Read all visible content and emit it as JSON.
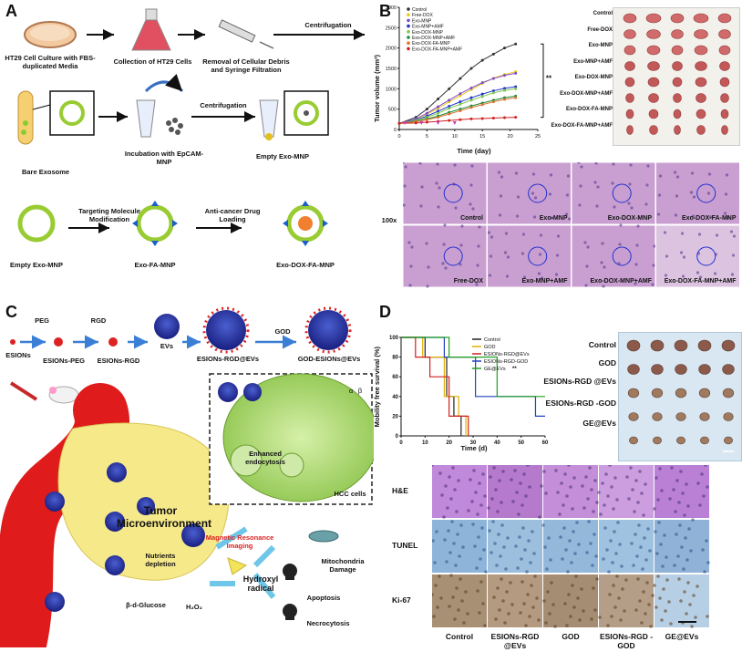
{
  "panels": {
    "a": "A",
    "b": "B",
    "c": "C",
    "d": "D"
  },
  "panelA": {
    "row1": [
      "HT29 Cell Culture with FBS-duplicated Media",
      "Collection of HT29 Cells",
      "Removal of Cellular Debris and Syringe Filtration",
      "Centrifugation"
    ],
    "row2": [
      "Bare Exosome",
      "Incubation with EpCAM-MNP",
      "Centrifugation",
      "Empty Exo-MNP"
    ],
    "row3": [
      "Empty Exo-MNP",
      "Targeting Molecule Modification",
      "Exo-FA-MNP",
      "Anti-cancer Drug Loading",
      "Exo-DOX-FA-MNP"
    ]
  },
  "panelB": {
    "legend": [
      "Control",
      "Free-DOX",
      "Exo-MNP",
      "Exo-MNP+AMF",
      "Exo-DOX-MNP",
      "Exo-DOX-MNP+AMF",
      "Exo-DOX-FA-MNP",
      "Exo-DOX-FA-MNP+AMF"
    ],
    "colors": [
      "#333333",
      "#f0c419",
      "#7b4fc9",
      "#2233cc",
      "#7ec84a",
      "#1a8c3a",
      "#e07030",
      "#d22020"
    ],
    "ylabel": "Tumor volume (mm³)",
    "xlabel": "Time (day)",
    "sig": "**",
    "yticks": [
      "0",
      "500",
      "1000",
      "1500",
      "2000",
      "2500",
      "3000"
    ],
    "xticks": [
      "0",
      "5",
      "10",
      "15",
      "20",
      "25"
    ],
    "photo_labels": [
      "Control",
      "Free-DOX",
      "Exo-MNP",
      "Exo-MNP+AMF",
      "Exo-DOX-MNP",
      "Exo-DOX-MNP+AMF",
      "Exo-DOX-FA-MNP",
      "Exo-DOX-FA-MNP+AMF"
    ],
    "histo_mag": "100x",
    "histo_labels": [
      "Control",
      "Exo-MNP",
      "Exo-DOX-MNP",
      "Exo-DOX-FA-MNP",
      "Free-DOX",
      "Exo-MNP+AMF",
      "Exo-DOX-MNP+AMF",
      "Exo-DOX-FA-MNP+AMF"
    ]
  },
  "panelC": {
    "top": [
      "PEG",
      "RGD",
      "ESIONs",
      "ESIONs-PEG",
      "ESIONs-RGD",
      "EVs",
      "ESIONs-RGD@EVs",
      "GOD",
      "GOD-ESIONs@EVs"
    ],
    "inset": [
      "Enhanced endocytosis",
      "HCC cells",
      "α",
      "β"
    ],
    "tumor": "Tumor Microenvironment",
    "labels": [
      "Nutrients depletion",
      "Magnetic Resonance Imaging",
      "Mitochondria Damage",
      "Hydroxyl radical",
      "Apoptosis",
      "Necrocytosis",
      "β-d-Glucose",
      "H₂O₂"
    ]
  },
  "panelD": {
    "ylabel": "Mobility free survival (%)",
    "xlabel": "Time (d)",
    "legend": [
      "Control",
      "GOD",
      "ESIONs-RGD@EVs",
      "ESIONs-RGD-GOD",
      "GE@EVs"
    ],
    "legend_sig": "**",
    "colors": [
      "#222222",
      "#e0b000",
      "#d02020",
      "#2040c0",
      "#20a020"
    ],
    "yticks": [
      "0",
      "20",
      "40",
      "60",
      "80",
      "100"
    ],
    "xticks": [
      "0",
      "10",
      "20",
      "30",
      "40",
      "50",
      "60"
    ],
    "photo_labels": [
      "Control",
      "GOD",
      "ESIONs-RGD @EVs",
      "ESIONs-RGD -GOD",
      "GE@EVs"
    ],
    "row_labels": [
      "H&E",
      "TUNEL",
      "Ki-67"
    ],
    "col_labels": [
      "Control",
      "ESIONs-RGD @EVs",
      "GOD",
      "ESIONs-RGD -GOD",
      "GE@EVs"
    ]
  },
  "chart_data": [
    {
      "type": "line",
      "xlabel": "Time (day)",
      "ylabel": "Tumor volume (mm³)",
      "ylim": [
        0,
        3000
      ],
      "xlim": [
        0,
        25
      ],
      "x": [
        0,
        3,
        5,
        7,
        9,
        11,
        13,
        15,
        17,
        19,
        21
      ],
      "series": [
        {
          "name": "Control",
          "values": [
            150,
            300,
            500,
            750,
            1000,
            1250,
            1500,
            1700,
            1850,
            2000,
            2100
          ]
        },
        {
          "name": "Free-DOX",
          "values": [
            150,
            250,
            380,
            520,
            680,
            830,
            980,
            1130,
            1260,
            1350,
            1420
          ]
        },
        {
          "name": "Exo-MNP",
          "values": [
            150,
            260,
            400,
            560,
            720,
            880,
            1020,
            1150,
            1250,
            1330,
            1380
          ]
        },
        {
          "name": "Exo-MNP+AMF",
          "values": [
            150,
            230,
            330,
            450,
            570,
            680,
            780,
            870,
            950,
            1010,
            1050
          ]
        },
        {
          "name": "Exo-DOX-MNP",
          "values": [
            150,
            220,
            300,
            400,
            520,
            620,
            720,
            810,
            900,
            960,
            1000
          ]
        },
        {
          "name": "Exo-DOX-MNP+AMF",
          "values": [
            150,
            200,
            260,
            330,
            420,
            500,
            580,
            650,
            720,
            780,
            820
          ]
        },
        {
          "name": "Exo-DOX-FA-MNP",
          "values": [
            150,
            190,
            240,
            300,
            380,
            460,
            540,
            610,
            680,
            740,
            780
          ]
        },
        {
          "name": "Exo-DOX-FA-MNP+AMF",
          "values": [
            150,
            160,
            180,
            200,
            220,
            240,
            260,
            270,
            280,
            290,
            300
          ]
        }
      ]
    },
    {
      "type": "line",
      "xlabel": "Time (d)",
      "ylabel": "Mobility free survival (%)",
      "ylim": [
        0,
        100
      ],
      "xlim": [
        0,
        60
      ],
      "series": [
        {
          "name": "Control",
          "x": [
            0,
            10,
            10,
            19,
            19,
            22,
            22,
            25,
            25
          ],
          "values": [
            100,
            100,
            80,
            80,
            40,
            40,
            20,
            20,
            0
          ]
        },
        {
          "name": "GOD",
          "x": [
            0,
            9,
            9,
            18,
            18,
            24,
            24,
            27,
            27
          ],
          "values": [
            100,
            100,
            80,
            80,
            40,
            40,
            20,
            20,
            0
          ]
        },
        {
          "name": "ESIONs-RGD@EVs",
          "x": [
            0,
            6,
            6,
            12,
            12,
            20,
            20,
            28,
            28
          ],
          "values": [
            100,
            100,
            80,
            80,
            60,
            60,
            20,
            20,
            0
          ]
        },
        {
          "name": "ESIONs-RGD-GOD",
          "x": [
            0,
            18,
            18,
            31,
            31,
            56,
            56,
            60
          ],
          "values": [
            100,
            100,
            80,
            80,
            40,
            40,
            20,
            20
          ]
        },
        {
          "name": "GE@EVs",
          "x": [
            0,
            20,
            20,
            40,
            40,
            60
          ],
          "values": [
            100,
            100,
            80,
            80,
            40,
            40
          ]
        }
      ]
    }
  ]
}
